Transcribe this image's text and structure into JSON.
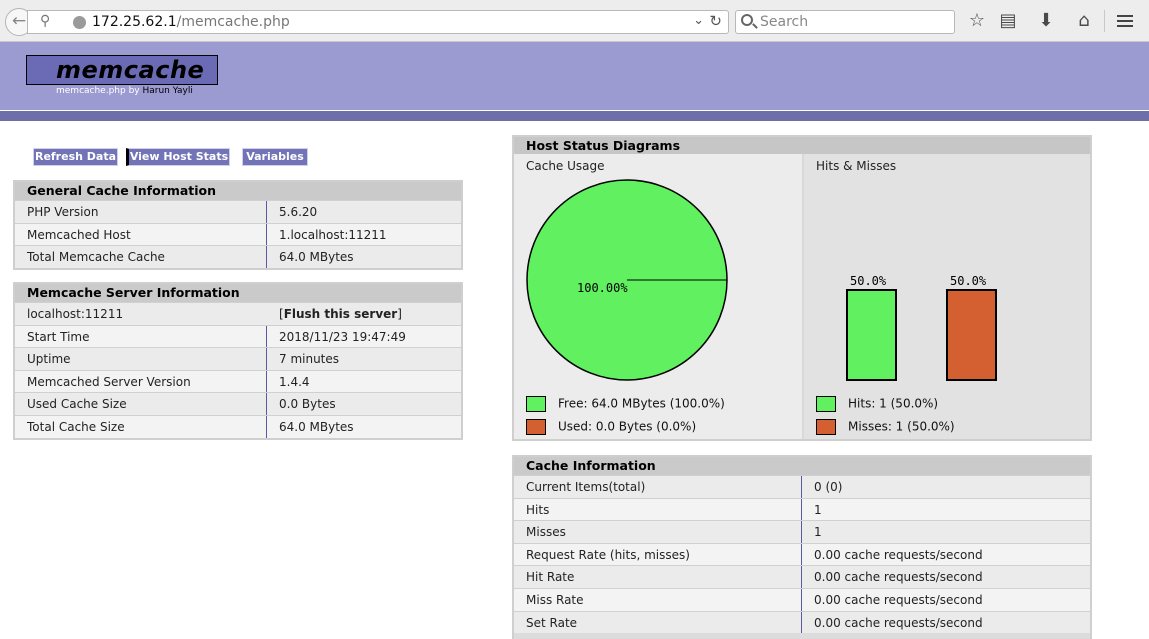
{
  "browser": {
    "url_host": "172.25.62.1",
    "url_path": "/memcache.php",
    "search_placeholder": "Search"
  },
  "header": {
    "logo": "memcache",
    "subtitle_prefix": "memcache.php by",
    "author": "Harun Yayli"
  },
  "menu": {
    "refresh": "Refresh Data",
    "host_stats": "View Host Stats",
    "variables": "Variables"
  },
  "general": {
    "title": "General Cache Information",
    "rows": [
      {
        "label": "PHP Version",
        "value": "5.6.20"
      },
      {
        "label": "Memcached Host",
        "value": "1.localhost:11211"
      },
      {
        "label": "Total Memcache Cache",
        "value": "64.0 MBytes"
      }
    ]
  },
  "server": {
    "title": "Memcache Server Information",
    "host": "localhost:11211",
    "flush_open": "[",
    "flush_label": "Flush this server",
    "flush_close": "]",
    "rows": [
      {
        "label": "Start Time",
        "value": "2018/11/23 19:47:49"
      },
      {
        "label": "Uptime",
        "value": "7 minutes"
      },
      {
        "label": "Memcached Server Version",
        "value": "1.4.4"
      },
      {
        "label": "Used Cache Size",
        "value": "0.0 Bytes"
      },
      {
        "label": "Total Cache Size",
        "value": "64.0 MBytes"
      }
    ]
  },
  "diagrams": {
    "title": "Host Status Diagrams",
    "cache_usage": {
      "title": "Cache Usage",
      "pie_label": "100.00%",
      "free_legend": "Free: 64.0 MBytes (100.0%)",
      "used_legend": "Used: 0.0 Bytes (0.0%)",
      "free_fraction": 1.0,
      "used_fraction": 0.0
    },
    "hits_misses": {
      "title": "Hits & Misses",
      "hits_pct_label": "50.0%",
      "misses_pct_label": "50.0%",
      "hits_fraction": 0.5,
      "misses_fraction": 0.5,
      "hits_legend": "Hits: 1 (50.0%)",
      "misses_legend": "Misses: 1 (50.0%)"
    },
    "colors": {
      "free": "#60f060",
      "used": "#d45f30"
    }
  },
  "cache_info": {
    "title": "Cache Information",
    "rows": [
      {
        "label": "Current Items(total)",
        "value": "0 (0)"
      },
      {
        "label": "Hits",
        "value": "1"
      },
      {
        "label": "Misses",
        "value": "1"
      },
      {
        "label": "Request Rate (hits, misses)",
        "value": "0.00 cache requests/second"
      },
      {
        "label": "Hit Rate",
        "value": "0.00 cache requests/second"
      },
      {
        "label": "Miss Rate",
        "value": "0.00 cache requests/second"
      },
      {
        "label": "Set Rate",
        "value": "0.00 cache requests/second"
      }
    ]
  }
}
